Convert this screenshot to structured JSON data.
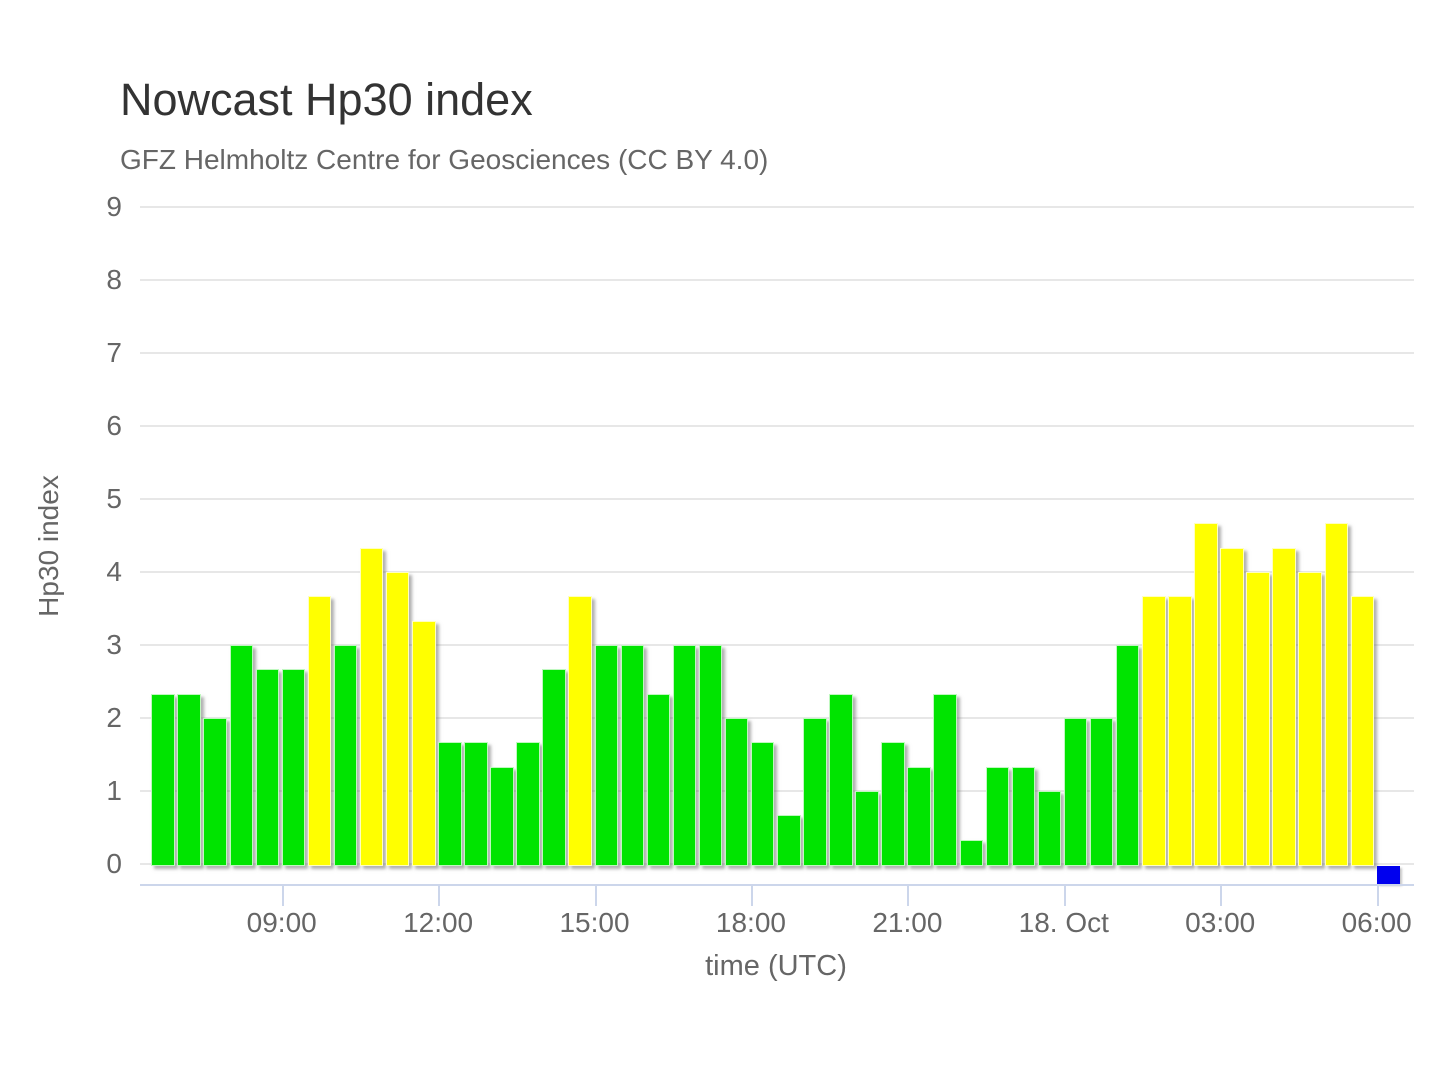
{
  "chart_data": {
    "type": "bar",
    "title": "Nowcast Hp30 index",
    "subtitle": "GFZ Helmholtz Centre for Geosciences (CC BY 4.0)",
    "xlabel": "time (UTC)",
    "ylabel": "Hp30 index",
    "ylim": [
      0,
      9
    ],
    "yticks": [
      0,
      1,
      2,
      3,
      4,
      5,
      6,
      7,
      8,
      9
    ],
    "grid": true,
    "legend": false,
    "bar_interval_minutes": 30,
    "colors": {
      "g": "#00e400",
      "y": "#ffff00",
      "b": "#0000ee",
      "grid": "#e7e7e7",
      "axis_line": "#ccd6eb",
      "text": "#666666",
      "title_text": "#333333"
    },
    "xticks": [
      {
        "label": "09:00",
        "slot": 5
      },
      {
        "label": "12:00",
        "slot": 11
      },
      {
        "label": "15:00",
        "slot": 17
      },
      {
        "label": "18:00",
        "slot": 23
      },
      {
        "label": "21:00",
        "slot": 29
      },
      {
        "label": "18. Oct",
        "slot": 35
      },
      {
        "label": "03:00",
        "slot": 41
      },
      {
        "label": "06:00",
        "slot": 47
      }
    ],
    "points": [
      {
        "time": "06:30",
        "value": 2.33,
        "c": "g"
      },
      {
        "time": "07:00",
        "value": 2.33,
        "c": "g"
      },
      {
        "time": "07:30",
        "value": 2.0,
        "c": "g"
      },
      {
        "time": "08:00",
        "value": 3.0,
        "c": "g"
      },
      {
        "time": "08:30",
        "value": 2.67,
        "c": "g"
      },
      {
        "time": "09:00",
        "value": 2.67,
        "c": "g"
      },
      {
        "time": "09:30",
        "value": 3.67,
        "c": "y"
      },
      {
        "time": "10:00",
        "value": 3.0,
        "c": "g"
      },
      {
        "time": "10:30",
        "value": 4.33,
        "c": "y"
      },
      {
        "time": "11:00",
        "value": 4.0,
        "c": "y"
      },
      {
        "time": "11:30",
        "value": 3.33,
        "c": "y"
      },
      {
        "time": "12:00",
        "value": 1.67,
        "c": "g"
      },
      {
        "time": "12:30",
        "value": 1.67,
        "c": "g"
      },
      {
        "time": "13:00",
        "value": 1.33,
        "c": "g"
      },
      {
        "time": "13:30",
        "value": 1.67,
        "c": "g"
      },
      {
        "time": "14:00",
        "value": 2.67,
        "c": "g"
      },
      {
        "time": "14:30",
        "value": 3.67,
        "c": "y"
      },
      {
        "time": "15:00",
        "value": 3.0,
        "c": "g"
      },
      {
        "time": "15:30",
        "value": 3.0,
        "c": "g"
      },
      {
        "time": "16:00",
        "value": 2.33,
        "c": "g"
      },
      {
        "time": "16:30",
        "value": 3.0,
        "c": "g"
      },
      {
        "time": "17:00",
        "value": 3.0,
        "c": "g"
      },
      {
        "time": "17:30",
        "value": 2.0,
        "c": "g"
      },
      {
        "time": "18:00",
        "value": 1.67,
        "c": "g"
      },
      {
        "time": "18:30",
        "value": 0.67,
        "c": "g"
      },
      {
        "time": "19:00",
        "value": 2.0,
        "c": "g"
      },
      {
        "time": "19:30",
        "value": 2.33,
        "c": "g"
      },
      {
        "time": "20:00",
        "value": 1.0,
        "c": "g"
      },
      {
        "time": "20:30",
        "value": 1.67,
        "c": "g"
      },
      {
        "time": "21:00",
        "value": 1.33,
        "c": "g"
      },
      {
        "time": "21:30",
        "value": 2.33,
        "c": "g"
      },
      {
        "time": "22:00",
        "value": 0.33,
        "c": "g"
      },
      {
        "time": "22:30",
        "value": 1.33,
        "c": "g"
      },
      {
        "time": "23:00",
        "value": 1.33,
        "c": "g"
      },
      {
        "time": "23:30",
        "value": 1.0,
        "c": "g"
      },
      {
        "time": "00:00",
        "value": 2.0,
        "c": "g"
      },
      {
        "time": "00:30",
        "value": 2.0,
        "c": "g"
      },
      {
        "time": "01:00",
        "value": 3.0,
        "c": "g"
      },
      {
        "time": "01:30",
        "value": 3.67,
        "c": "y"
      },
      {
        "time": "02:00",
        "value": 3.67,
        "c": "y"
      },
      {
        "time": "02:30",
        "value": 4.67,
        "c": "y"
      },
      {
        "time": "03:00",
        "value": 4.33,
        "c": "y"
      },
      {
        "time": "03:30",
        "value": 4.0,
        "c": "y"
      },
      {
        "time": "04:00",
        "value": 4.33,
        "c": "y"
      },
      {
        "time": "04:30",
        "value": 4.0,
        "c": "y"
      },
      {
        "time": "05:00",
        "value": 4.67,
        "c": "y"
      },
      {
        "time": "05:30",
        "value": 3.67,
        "c": "y"
      },
      {
        "time": "06:00",
        "value": 0,
        "c": "b",
        "marker": true
      }
    ]
  }
}
